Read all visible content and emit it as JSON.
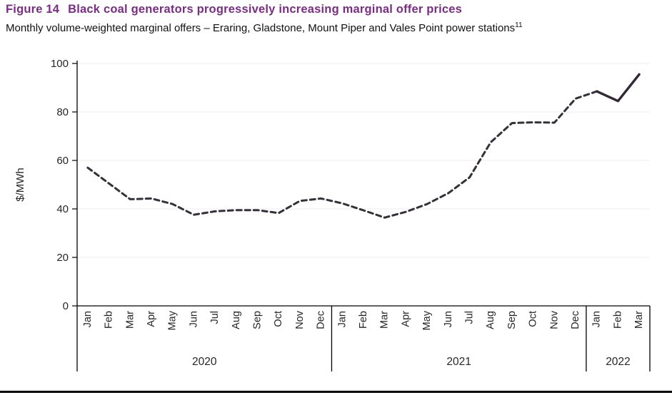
{
  "header": {
    "figure_label": "Figure 14",
    "title": "Black coal generators progressively increasing marginal offer prices"
  },
  "subtitle": {
    "text": "Monthly volume-weighted marginal offers – Eraring, Gladstone, Mount Piper and Vales Point power stations",
    "footnote_marker": "11"
  },
  "chart_data": {
    "type": "line",
    "title": "Monthly volume-weighted marginal offers",
    "ylabel": "$/MWh",
    "xlabel": "",
    "ylim": [
      0,
      100
    ],
    "yticks": [
      0,
      20,
      40,
      60,
      80,
      100
    ],
    "grid": "horizontal",
    "legend": "none",
    "x_months": [
      "Jan",
      "Feb",
      "Mar",
      "Apr",
      "May",
      "Jun",
      "Jul",
      "Aug",
      "Sep",
      "Oct",
      "Nov",
      "Dec",
      "Jan",
      "Feb",
      "Mar",
      "Apr",
      "May",
      "Jun",
      "Jul",
      "Aug",
      "Sep",
      "Oct",
      "Nov",
      "Dec",
      "Jan",
      "Feb",
      "Mar"
    ],
    "year_groups": [
      {
        "label": "2020",
        "count": 12
      },
      {
        "label": "2021",
        "count": 12
      },
      {
        "label": "2022",
        "count": 3
      }
    ],
    "series": [
      {
        "name": "Volume-weighted marginal offer ($/MWh)",
        "values": [
          57,
          50.5,
          44,
          44.3,
          42,
          37.6,
          39,
          39.5,
          39.5,
          38.3,
          43.3,
          44.3,
          42.3,
          39.4,
          36.4,
          38.8,
          42,
          46.5,
          53,
          67.5,
          75.4,
          75.7,
          75.6,
          85.5,
          88.5,
          84.5,
          95.5
        ],
        "line_style": "dashed-then-solid",
        "solid_from_index": 24
      }
    ],
    "colors": {
      "title_accent": "#7b2c85",
      "dashed_line": "#363039",
      "solid_line": "#322838",
      "grid": "#ededed",
      "axis": "#000000",
      "text": "#262626"
    }
  }
}
